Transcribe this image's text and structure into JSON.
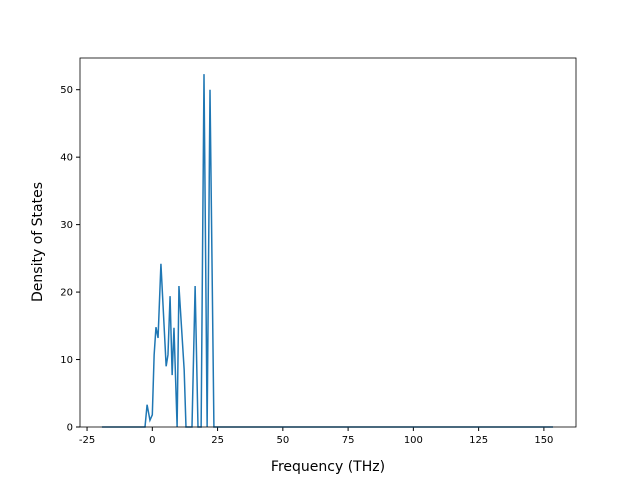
{
  "chart_data": {
    "type": "line",
    "x_label": "Frequency (THz)",
    "y_label": "Density of States",
    "x": [
      -19.3,
      -2.8,
      -2.0,
      -0.9,
      0,
      0.7,
      1.4,
      2.2,
      3.3,
      5.3,
      6.0,
      6.8,
      7.6,
      8.3,
      9.5,
      10.2,
      12.2,
      12.9,
      15.2,
      16.4,
      17.5,
      18.7,
      19.8,
      21.0,
      22.1,
      23.6,
      153.5
    ],
    "series": [
      {
        "name": "DOS",
        "color": "#1f77b4",
        "values": [
          0,
          0,
          3.3,
          1,
          1.8,
          10.7,
          14.8,
          13.2,
          24.2,
          9,
          10.7,
          19.4,
          7.7,
          14.7,
          0,
          20.9,
          8.5,
          0,
          0,
          20.9,
          0,
          0,
          52.3,
          0,
          50,
          0,
          0
        ]
      }
    ],
    "xlim": [
      -27.7,
      162.3
    ],
    "ylim": [
      0,
      54.7
    ],
    "xticks": [
      -25,
      0,
      25,
      50,
      75,
      100,
      125,
      150
    ],
    "yticks": [
      0,
      10,
      20,
      30,
      40,
      50
    ]
  }
}
